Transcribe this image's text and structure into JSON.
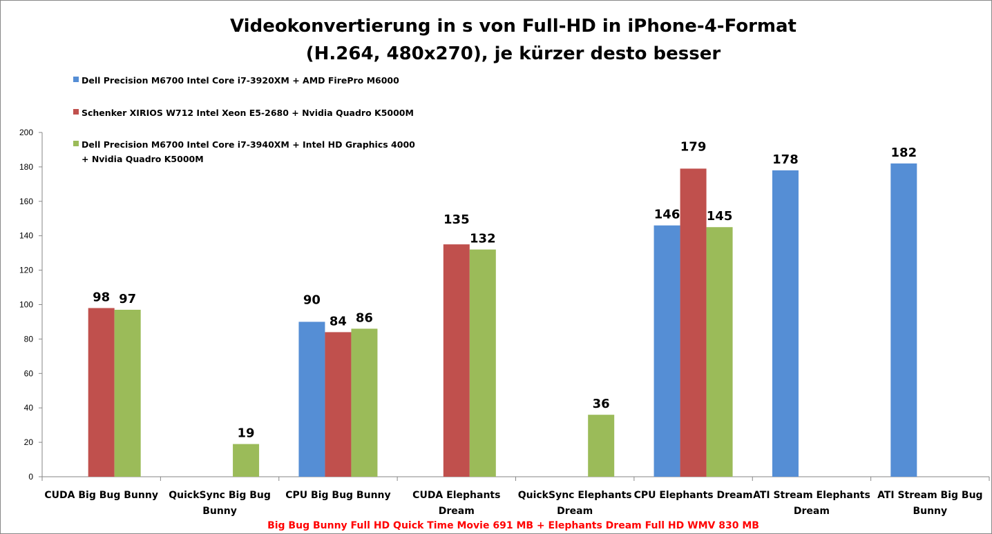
{
  "chart_data": {
    "type": "bar",
    "title": "Videokonvertierung in s von Full-HD in iPhone-4-Format",
    "subtitle": "(H.264, 480x270), je kürzer desto besser",
    "xlabel": "Big Bug Bunny Full HD Quick Time Movie 691 MB + Elephants Dream Full HD WMV 830 MB",
    "ylabel": "",
    "ylim": [
      0,
      200
    ],
    "yticks": [
      0,
      20,
      40,
      60,
      80,
      100,
      120,
      140,
      160,
      180,
      200
    ],
    "grid": false,
    "legend_position": "top-left",
    "categories": [
      [
        "CUDA Big Bug Bunny"
      ],
      [
        "QuickSync Big Bug",
        "Bunny"
      ],
      [
        "CPU Big Bug Bunny"
      ],
      [
        "CUDA Elephants",
        "Dream"
      ],
      [
        "QuickSync Elephants",
        "Dream"
      ],
      [
        "CPU Elephants Dream"
      ],
      [
        "ATI Stream Elephants",
        "Dream"
      ],
      [
        "ATI Stream Big Bug",
        "Bunny"
      ]
    ],
    "series": [
      {
        "name": [
          "Dell Precision M6700 Intel Core i7-3920XM + AMD FirePro M6000"
        ],
        "color": "#558ed5",
        "values": [
          null,
          null,
          90,
          null,
          null,
          146,
          178,
          182
        ]
      },
      {
        "name": [
          "Schenker XIRIOS W712 Intel Xeon E5-2680 + Nvidia Quadro K5000M"
        ],
        "color": "#c0504d",
        "values": [
          98,
          null,
          84,
          135,
          null,
          179,
          null,
          null
        ]
      },
      {
        "name": [
          "Dell Precision M6700 Intel Core i7-3940XM + Intel HD Graphics 4000",
          "+ Nvidia Quadro K5000M"
        ],
        "color": "#9bbb59",
        "values": [
          97,
          19,
          86,
          132,
          36,
          145,
          null,
          null
        ]
      }
    ]
  }
}
